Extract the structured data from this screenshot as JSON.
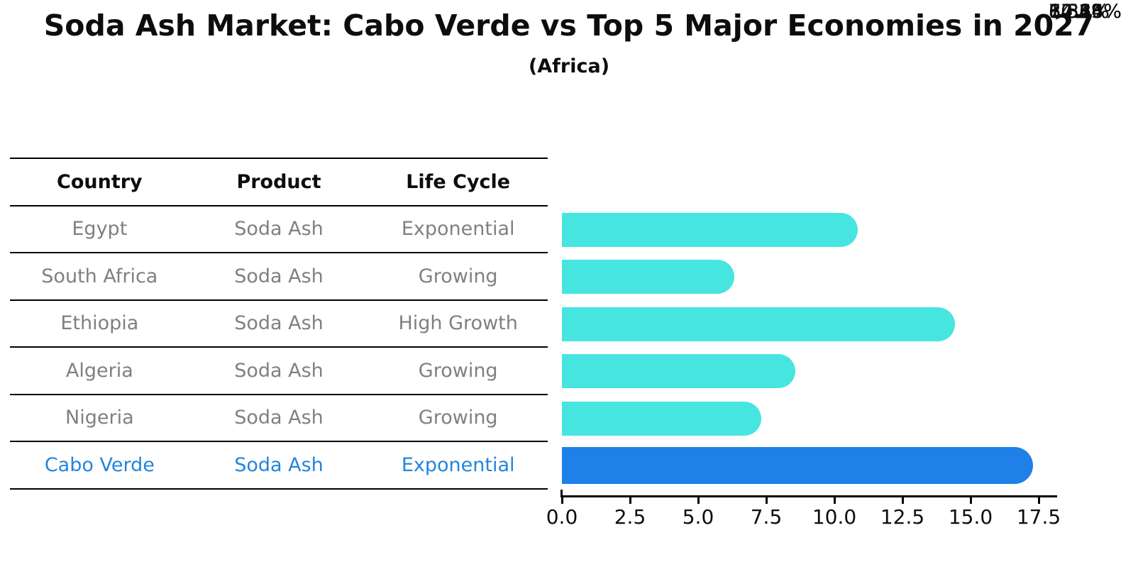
{
  "header": {
    "title": "Soda Ash Market: Cabo Verde vs Top 5 Major Economies in 2027",
    "subtitle": "(Africa)"
  },
  "table": {
    "headers": [
      "Country",
      "Product",
      "Life Cycle"
    ],
    "rows": [
      {
        "country": "Egypt",
        "product": "Soda Ash",
        "life_cycle": "Exponential"
      },
      {
        "country": "South Africa",
        "product": "Soda Ash",
        "life_cycle": "Growing"
      },
      {
        "country": "Ethiopia",
        "product": "Soda Ash",
        "life_cycle": "High Growth"
      },
      {
        "country": "Algeria",
        "product": "Soda Ash",
        "life_cycle": "Growing"
      },
      {
        "country": "Nigeria",
        "product": "Soda Ash",
        "life_cycle": "Growing"
      },
      {
        "country": "Cabo Verde",
        "product": "Soda Ash",
        "life_cycle": "Exponential"
      }
    ],
    "highlight_row_index": 5,
    "row_text_color": "#808080",
    "highlight_text_color": "#2386db"
  },
  "chart_data": {
    "type": "bar",
    "orientation": "horizontal",
    "title": "Soda Ash Market: Cabo Verde vs Top 5 Major Economies in 2027 (Africa)",
    "categories": [
      "Egypt",
      "South Africa",
      "Ethiopia",
      "Algeria",
      "Nigeria",
      "Cabo Verde"
    ],
    "values": [
      10.86,
      6.32,
      14.44,
      8.56,
      7.32,
      17.13
    ],
    "value_labels": [
      "10.86%",
      "6.32%",
      "14.44%",
      "8.56%",
      "7.32%",
      "17.13%"
    ],
    "x_ticks": [
      "0.0",
      "2.5",
      "5.0",
      "7.5",
      "10.0",
      "12.5",
      "15.0",
      "17.5"
    ],
    "xlim": [
      0,
      17.5
    ],
    "grid": false,
    "legend": false,
    "bar_color": "#46e5e0",
    "highlight_color": "#1e80e8",
    "highlight_index": 5
  }
}
